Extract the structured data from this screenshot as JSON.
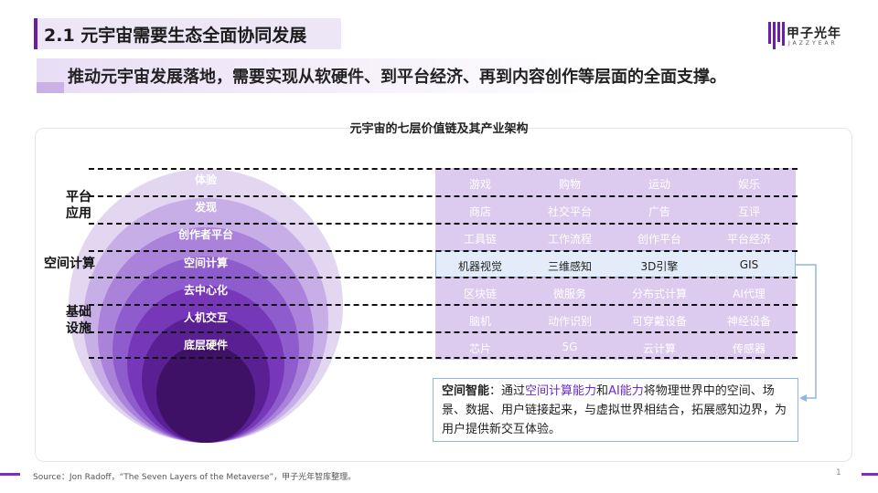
{
  "header": {
    "title": "2.1 元宇宙需要生态全面协同发展",
    "logo_text": "甲子光年",
    "logo_sub": "JAZZYEAR"
  },
  "subtitle": "推动元宇宙发展落地，需要实现从软硬件、到平台经济、再到内容创作等层面的全面支撑。",
  "diagram": {
    "title": "元宇宙的七层价值链及其产业架构",
    "groups": [
      "平台\n应用",
      "空间计算",
      "基础\n设施"
    ],
    "layers": [
      "体验",
      "发现",
      "创作者平台",
      "空间计算",
      "去中心化",
      "人机交互",
      "底层硬件"
    ],
    "rows": [
      [
        "游戏",
        "购物",
        "运动",
        "娱乐"
      ],
      [
        "商店",
        "社交平台",
        "广告",
        "互评"
      ],
      [
        "工具链",
        "工作流程",
        "创作平台",
        "平台经济"
      ],
      [
        "机器视觉",
        "三维感知",
        "3D引擎",
        "GIS"
      ],
      [
        "区块链",
        "微服务",
        "分布式计算",
        "AI代理"
      ],
      [
        "脑机",
        "动作识别",
        "可穿戴设备",
        "神经设备"
      ],
      [
        "芯片",
        "5G",
        "云计算",
        "传感器"
      ]
    ]
  },
  "info": {
    "key": "空间智能",
    "sep": "：通过",
    "hl1": "空间计算能力",
    "and": "和",
    "hl2": "AI能力",
    "rest": "将物理世界中的空间、场景、数据、用户链接起来，与虚拟世界相结合，拓展感知边界，为用户提供新交互体验。"
  },
  "footer": {
    "source": "Source：Jon Radoff，“The Seven Layers of the Metaverse”，甲子光年智库整理。",
    "page": "1"
  },
  "colors": {
    "accent": "#6b1fa8",
    "grid": "#dccbee",
    "highlight_row": "#e3ecf8",
    "highlight_text": "#6a2bd0"
  }
}
